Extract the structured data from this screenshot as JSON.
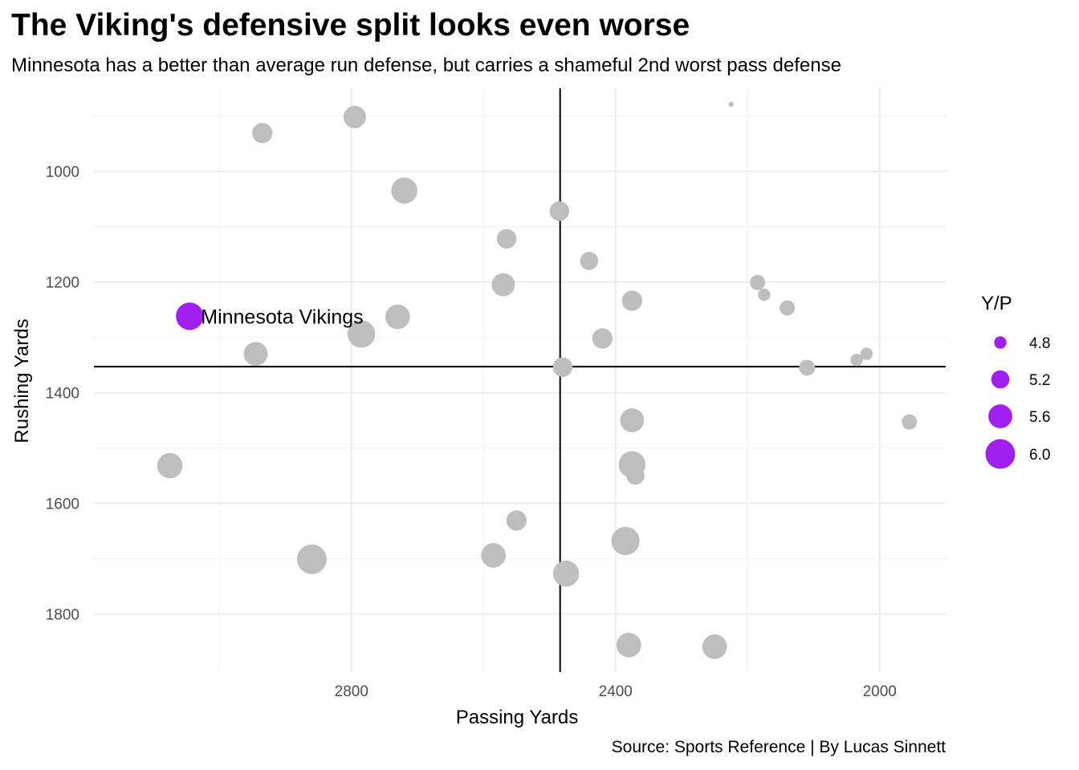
{
  "chart_data": {
    "type": "scatter",
    "title": "The Viking's defensive split looks even worse",
    "subtitle": "Minnesota has a better than average run defense, but carries a shameful 2nd worst pass defense",
    "caption": "Source: Sports Reference | By Lucas Sinnett",
    "xlabel": "Passing Yards",
    "ylabel": "Rushing Yards",
    "x_reversed": true,
    "y_reversed": true,
    "xlim": [
      3190,
      1900
    ],
    "ylim": [
      850,
      1905
    ],
    "x_ticks": [
      2800,
      2400,
      2000
    ],
    "y_ticks": [
      1000,
      1200,
      1400,
      1600,
      1800
    ],
    "grid": true,
    "reference_lines": {
      "x": 2484,
      "y": 1353
    },
    "size_legend": {
      "title": "Y/P",
      "values": [
        4.8,
        5.2,
        5.6,
        6.0
      ],
      "labels": [
        "4.8",
        "5.2",
        "5.6",
        "6.0"
      ],
      "color": "#A020F0"
    },
    "highlight_color": "#A020F0",
    "point_color": "#BEBEBE",
    "points": [
      {
        "x": 3045,
        "y": 1262,
        "yp": 5.85,
        "highlight": true,
        "label": "Minnesota Vikings"
      },
      {
        "x": 2935,
        "y": 931,
        "yp": 5.35
      },
      {
        "x": 2795,
        "y": 902,
        "yp": 5.5
      },
      {
        "x": 2720,
        "y": 1035,
        "yp": 5.75
      },
      {
        "x": 2730,
        "y": 1263,
        "yp": 5.65
      },
      {
        "x": 2785,
        "y": 1294,
        "yp": 5.85
      },
      {
        "x": 2945,
        "y": 1330,
        "yp": 5.6
      },
      {
        "x": 3075,
        "y": 1532,
        "yp": 5.7
      },
      {
        "x": 2860,
        "y": 1701,
        "yp": 6.0
      },
      {
        "x": 2485,
        "y": 1072,
        "yp": 5.3
      },
      {
        "x": 2565,
        "y": 1122,
        "yp": 5.3
      },
      {
        "x": 2570,
        "y": 1205,
        "yp": 5.55
      },
      {
        "x": 2440,
        "y": 1162,
        "yp": 5.2
      },
      {
        "x": 2375,
        "y": 1234,
        "yp": 5.35
      },
      {
        "x": 2420,
        "y": 1302,
        "yp": 5.35
      },
      {
        "x": 2480,
        "y": 1354,
        "yp": 5.3
      },
      {
        "x": 2375,
        "y": 1450,
        "yp": 5.6
      },
      {
        "x": 2375,
        "y": 1530,
        "yp": 5.8
      },
      {
        "x": 2370,
        "y": 1550,
        "yp": 5.2
      },
      {
        "x": 2550,
        "y": 1631,
        "yp": 5.35
      },
      {
        "x": 2585,
        "y": 1694,
        "yp": 5.65
      },
      {
        "x": 2475,
        "y": 1727,
        "yp": 5.75
      },
      {
        "x": 2385,
        "y": 1668,
        "yp": 5.9
      },
      {
        "x": 2380,
        "y": 1856,
        "yp": 5.65
      },
      {
        "x": 2250,
        "y": 1859,
        "yp": 5.65
      },
      {
        "x": 2225,
        "y": 879,
        "yp": 4.3
      },
      {
        "x": 2185,
        "y": 1201,
        "yp": 5.0
      },
      {
        "x": 2175,
        "y": 1223,
        "yp": 4.8
      },
      {
        "x": 2140,
        "y": 1247,
        "yp": 5.0
      },
      {
        "x": 2110,
        "y": 1355,
        "yp": 5.05
      },
      {
        "x": 2035,
        "y": 1341,
        "yp": 4.8
      },
      {
        "x": 2020,
        "y": 1330,
        "yp": 4.8
      },
      {
        "x": 1955,
        "y": 1453,
        "yp": 5.0
      }
    ]
  }
}
